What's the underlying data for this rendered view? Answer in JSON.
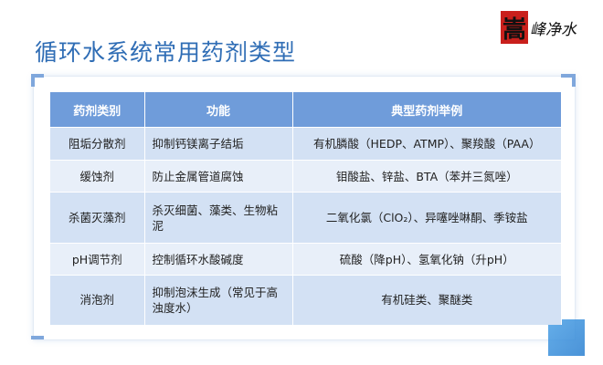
{
  "title": "循环水系统常用药剂类型",
  "logo": {
    "seal": "嵩",
    "text": "峰净水"
  },
  "table": {
    "headers": [
      "药剂类别",
      "功能",
      "典型药剂举例"
    ],
    "rows": [
      [
        "阻垢分散剂",
        "抑制钙镁离子结垢",
        "有机膦酸（HEDP、ATMP）、聚羧酸（PAA）"
      ],
      [
        "缓蚀剂",
        "防止金属管道腐蚀",
        "钼酸盐、锌盐、BTA（苯并三氮唑）"
      ],
      [
        "杀菌灭藻剂",
        "杀灭细菌、藻类、生物粘泥",
        "二氧化氯（ClO₂）、异噻唑啉酮、季铵盐"
      ],
      [
        "pH调节剂",
        "控制循环水酸碱度",
        "硫酸（降pH）、氢氧化钠（升pH）"
      ],
      [
        "消泡剂",
        "抑制泡沫生成（常见于高浊度水）",
        "有机硅类、聚醚类"
      ]
    ]
  }
}
